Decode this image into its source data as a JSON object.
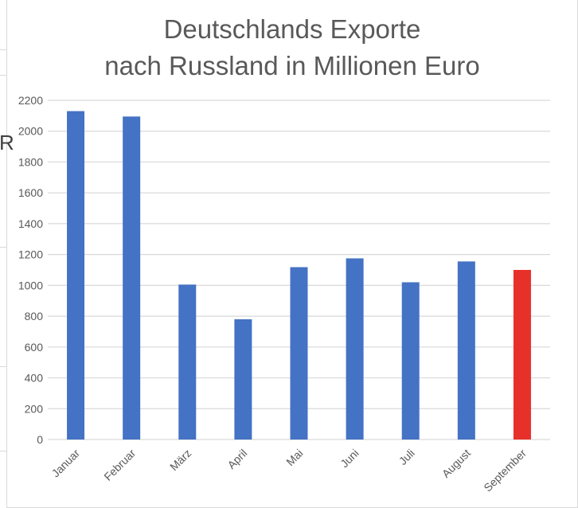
{
  "chart_data": {
    "type": "bar",
    "title": [
      "Deutschlands Exporte",
      "nach Russland in Millionen Euro"
    ],
    "categories": [
      "Januar",
      "Februar",
      "März",
      "April",
      "Mai",
      "Juni",
      "Juli",
      "August",
      "September"
    ],
    "values": [
      2130,
      2095,
      1005,
      780,
      1118,
      1175,
      1020,
      1155,
      1100
    ],
    "ylim": [
      0,
      2200
    ],
    "yticks": [
      0,
      200,
      400,
      600,
      800,
      1000,
      1200,
      1400,
      1600,
      1800,
      2000,
      2200
    ],
    "grid": true,
    "legend": "none",
    "bar_color": "#4472c4",
    "highlight_color": "#e8302a",
    "highlight_category": "September",
    "grid_color": "#d9d9d9",
    "text_color": "#595959"
  }
}
